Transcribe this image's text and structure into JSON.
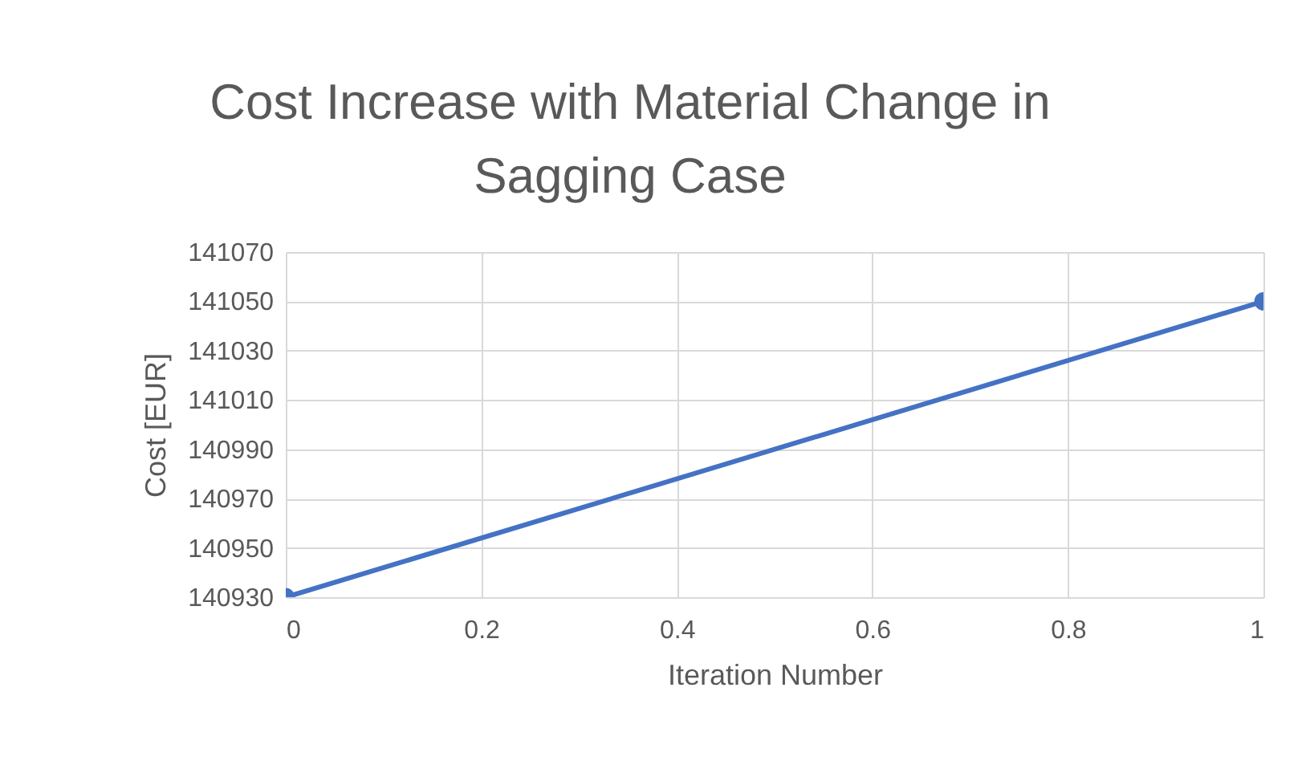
{
  "chart_data": {
    "type": "line",
    "title": "Cost Increase with Material Change in Sagging Case",
    "xlabel": "Iteration Number",
    "ylabel": "Cost [EUR]",
    "x": [
      0,
      1
    ],
    "series": [
      {
        "color": "#4472c4",
        "values": [
          140930,
          141050
        ]
      }
    ],
    "xlim": [
      0,
      1
    ],
    "xticks": [
      0,
      0.2,
      0.4,
      0.6,
      0.8,
      1
    ],
    "ylim": [
      140930,
      141070
    ],
    "yticks": [
      140930,
      140950,
      140970,
      140990,
      141010,
      141030,
      141050,
      141070
    ],
    "grid": true,
    "marker": "circle"
  }
}
